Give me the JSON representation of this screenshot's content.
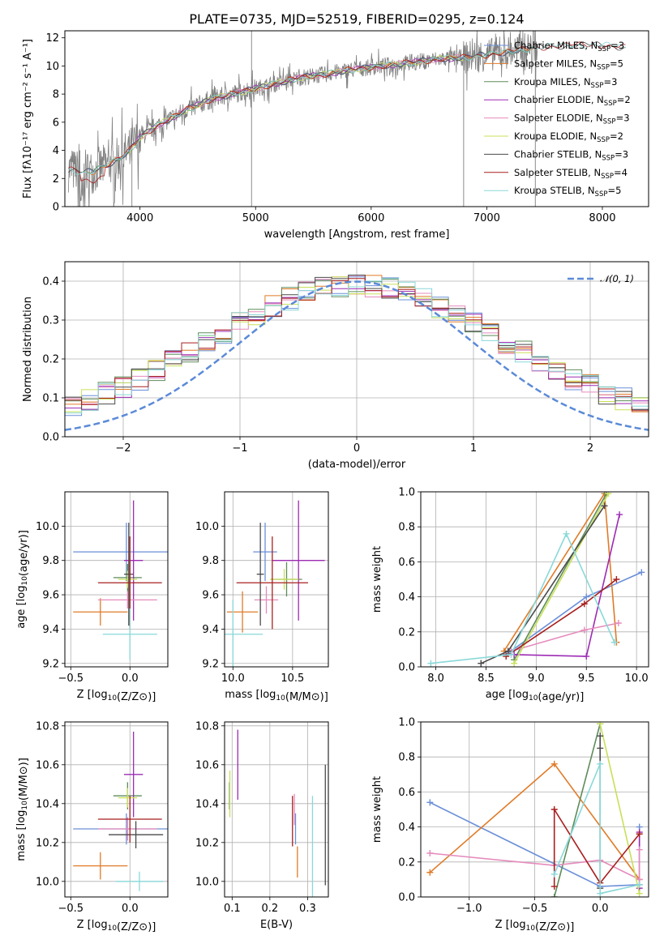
{
  "colors": {
    "Chabrier MILES": "#6a8fd8",
    "Salpeter MILES": "#e07b28",
    "Kroupa MILES": "#5e8c5a",
    "Chabrier ELODIE": "#9d2bb4",
    "Salpeter ELODIE": "#e58bbc",
    "Kroupa ELODIE": "#c8e05a",
    "Chabrier STELIB": "#4a4a4a",
    "Salpeter STELIB": "#a81f1f",
    "Kroupa STELIB": "#8ad8d8",
    "data": "#808080"
  },
  "chart_data": [
    {
      "id": "spectrum",
      "type": "line",
      "title": "PLATE=0735, MJD=52519, FIBERID=0295, z=0.124",
      "xlabel": "wavelength [Angstrom, rest frame]",
      "ylabel": "Flux [fλ10⁻¹⁷ erg cm⁻² s⁻¹ A⁻¹]",
      "xlim": [
        3350,
        8400
      ],
      "ylim": [
        0,
        12.5
      ],
      "xticks": [
        4000,
        5000,
        6000,
        7000,
        8000
      ],
      "yticks": [
        0,
        2,
        4,
        6,
        8,
        10,
        12
      ],
      "grid": false,
      "legend_position": "top-right",
      "series": [
        {
          "name": "Chabrier MILES, N",
          "sub": "SSP",
          "suffix": "=3"
        },
        {
          "name": "Salpeter MILES, N",
          "sub": "SSP",
          "suffix": "=5"
        },
        {
          "name": "Kroupa MILES, N",
          "sub": "SSP",
          "suffix": "=3"
        },
        {
          "name": "Chabrier ELODIE, N",
          "sub": "SSP",
          "suffix": "=2"
        },
        {
          "name": "Salpeter ELODIE, N",
          "sub": "SSP",
          "suffix": "=3"
        },
        {
          "name": "Kroupa ELODIE, N",
          "sub": "SSP",
          "suffix": "=2"
        },
        {
          "name": "Chabrier STELIB, N",
          "sub": "SSP",
          "suffix": "=3"
        },
        {
          "name": "Salpeter STELIB, N",
          "sub": "SSP",
          "suffix": "=4"
        },
        {
          "name": "Kroupa STELIB, N",
          "sub": "SSP",
          "suffix": "=5"
        }
      ],
      "continuum": {
        "x": [
          3400,
          3500,
          3600,
          3700,
          3800,
          3900,
          4000,
          4100,
          4200,
          4300,
          4400,
          4500,
          4600,
          4700,
          4800,
          4900,
          5000,
          5200,
          5400,
          5600,
          5800,
          6000,
          6200,
          6400,
          6600,
          6800,
          7000,
          7200,
          7400,
          7600,
          7800,
          8000,
          8200
        ],
        "y": [
          2.6,
          2.45,
          2.5,
          2.9,
          3.3,
          3.9,
          4.9,
          5.5,
          6.0,
          6.4,
          6.9,
          7.2,
          7.6,
          7.8,
          8.0,
          8.2,
          8.4,
          8.8,
          9.2,
          9.4,
          9.7,
          9.9,
          10.1,
          10.3,
          10.5,
          10.6,
          10.8,
          11.0,
          11.3,
          11.4,
          11.5,
          11.5,
          11.3
        ]
      }
    },
    {
      "id": "residuals",
      "type": "histogram",
      "xlabel": "(data-model)/error",
      "ylabel": "Normed distribution",
      "xlim": [
        -2.5,
        2.5
      ],
      "ylim": [
        0,
        0.45
      ],
      "xticks": [
        -2,
        -1,
        0,
        1,
        2
      ],
      "yticks": [
        0.0,
        0.1,
        0.2,
        0.3,
        0.4
      ],
      "grid": true,
      "legend_position": "top-right",
      "reference": {
        "name": "𝒩(0, 1)",
        "mean": 0,
        "sigma": 1
      }
    },
    {
      "id": "age-vs-Z",
      "type": "errorbar",
      "xlabel": "Z [log10(Z/Z⊙)]",
      "ylabel": "age  [log10(age/yr)]",
      "xlim": [
        -0.55,
        0.32
      ],
      "ylim": [
        9.18,
        10.2
      ],
      "xticks": [
        -0.5,
        0.0
      ],
      "yticks": [
        9.2,
        9.4,
        9.6,
        9.8,
        10.0
      ],
      "grid": true,
      "points": [
        {
          "model": "Chabrier MILES",
          "x": -0.03,
          "xerr": 0.45,
          "y": 9.85,
          "yerr": 0.17
        },
        {
          "model": "Salpeter MILES",
          "x": -0.25,
          "xerr": 0.23,
          "y": 9.5,
          "yerr": 0.08
        },
        {
          "model": "Kroupa MILES",
          "x": -0.02,
          "xerr": 0.12,
          "y": 9.7,
          "yerr": 0.08
        },
        {
          "model": "Chabrier ELODIE",
          "x": 0.03,
          "xerr": 0.08,
          "y": 9.8,
          "yerr": 0.35
        },
        {
          "model": "Salpeter ELODIE",
          "x": -0.02,
          "xerr": 0.25,
          "y": 9.57,
          "yerr": 0.05
        },
        {
          "model": "Kroupa ELODIE",
          "x": -0.02,
          "xerr": 0.08,
          "y": 9.69,
          "yerr": 0.05
        },
        {
          "model": "Chabrier STELIB",
          "x": -0.01,
          "xerr": 0.04,
          "y": 9.72,
          "yerr": 0.3
        },
        {
          "model": "Salpeter STELIB",
          "x": 0.0,
          "xerr": 0.27,
          "y": 9.67,
          "yerr": 0.27
        },
        {
          "model": "Kroupa STELIB",
          "x": 0.0,
          "xerr": 0.23,
          "y": 9.37,
          "yerr": 0.15
        }
      ]
    },
    {
      "id": "age-vs-mass",
      "type": "errorbar",
      "xlabel": "mass [log10(M/M⊙)]",
      "ylabel": "",
      "xlim": [
        9.93,
        10.8
      ],
      "ylim": [
        9.18,
        10.2
      ],
      "xticks": [
        10.0,
        10.5
      ],
      "yticks": [
        9.2,
        9.4,
        9.6,
        9.8,
        10.0
      ],
      "grid": true,
      "points": [
        {
          "model": "Chabrier MILES",
          "x": 10.27,
          "xerr": 0.1,
          "y": 9.85,
          "yerr": 0.17
        },
        {
          "model": "Salpeter MILES",
          "x": 10.08,
          "xerr": 0.13,
          "y": 9.5,
          "yerr": 0.12
        },
        {
          "model": "Kroupa MILES",
          "x": 10.45,
          "xerr": 0.13,
          "y": 9.69,
          "yerr": 0.1
        },
        {
          "model": "Chabrier ELODIE",
          "x": 10.55,
          "xerr": 0.22,
          "y": 9.8,
          "yerr": 0.35
        },
        {
          "model": "Salpeter ELODIE",
          "x": 10.28,
          "xerr": 0.1,
          "y": 9.57,
          "yerr": 0.08
        },
        {
          "model": "Kroupa ELODIE",
          "x": 10.43,
          "xerr": 0.12,
          "y": 9.69,
          "yerr": 0.06
        },
        {
          "model": "Chabrier STELIB",
          "x": 10.23,
          "xerr": 0.03,
          "y": 9.72,
          "yerr": 0.3
        },
        {
          "model": "Salpeter STELIB",
          "x": 10.33,
          "xerr": 0.3,
          "y": 9.67,
          "yerr": 0.27
        },
        {
          "model": "Kroupa STELIB",
          "x": 10.0,
          "xerr": 0.25,
          "y": 9.37,
          "yerr": 0.2
        }
      ]
    },
    {
      "id": "weight-vs-age",
      "type": "line",
      "xlabel": "age  [log10(age/yr)]",
      "ylabel": "mass weight",
      "xlim": [
        7.85,
        10.12
      ],
      "ylim": [
        0,
        1.0
      ],
      "xticks": [
        8.0,
        8.5,
        9.0,
        9.5,
        10.0
      ],
      "yticks": [
        0.0,
        0.2,
        0.4,
        0.6,
        0.8,
        1.0
      ],
      "grid": true,
      "series": [
        {
          "model": "Chabrier MILES",
          "x": [
            8.7,
            9.5,
            10.05
          ],
          "y": [
            0.07,
            0.4,
            0.54
          ]
        },
        {
          "model": "Salpeter MILES",
          "x": [
            8.68,
            9.68,
            9.8
          ],
          "y": [
            0.09,
            0.99,
            0.14
          ]
        },
        {
          "model": "Kroupa MILES",
          "x": [
            8.78,
            9.7
          ],
          "y": [
            0.04,
            0.99
          ]
        },
        {
          "model": "Chabrier ELODIE",
          "x": [
            8.78,
            9.5,
            9.83
          ],
          "y": [
            0.07,
            0.06,
            0.87
          ]
        },
        {
          "model": "Salpeter ELODIE",
          "x": [
            8.75,
            9.48,
            9.82
          ],
          "y": [
            0.09,
            0.21,
            0.25
          ]
        },
        {
          "model": "Kroupa ELODIE",
          "x": [
            8.78,
            9.72
          ],
          "y": [
            0.02,
            0.99
          ]
        },
        {
          "model": "Chabrier STELIB",
          "x": [
            8.45,
            8.72,
            9.68
          ],
          "y": [
            0.02,
            0.09,
            0.92
          ]
        },
        {
          "model": "Salpeter STELIB",
          "x": [
            8.7,
            9.48,
            9.8
          ],
          "y": [
            0.06,
            0.36,
            0.5
          ]
        },
        {
          "model": "Kroupa STELIB",
          "x": [
            7.95,
            8.75,
            9.3,
            9.78
          ],
          "y": [
            0.02,
            0.07,
            0.76,
            0.14
          ]
        }
      ]
    },
    {
      "id": "mass-vs-Z",
      "type": "errorbar",
      "xlabel": "Z [log10(Z/Z⊙)]",
      "ylabel": "mass [log10(M/M⊙)]",
      "xlim": [
        -0.55,
        0.32
      ],
      "ylim": [
        9.92,
        10.82
      ],
      "xticks": [
        -0.5,
        0.0
      ],
      "yticks": [
        10.0,
        10.2,
        10.4,
        10.6,
        10.8
      ],
      "grid": true,
      "points": [
        {
          "model": "Chabrier MILES",
          "x": -0.03,
          "xerr": 0.45,
          "y": 10.27,
          "yerr": 0.08
        },
        {
          "model": "Salpeter MILES",
          "x": -0.25,
          "xerr": 0.23,
          "y": 10.08,
          "yerr": 0.07
        },
        {
          "model": "Kroupa MILES",
          "x": -0.02,
          "xerr": 0.12,
          "y": 10.44,
          "yerr": 0.07
        },
        {
          "model": "Chabrier ELODIE",
          "x": 0.03,
          "xerr": 0.08,
          "y": 10.55,
          "yerr": 0.22
        },
        {
          "model": "Salpeter ELODIE",
          "x": -0.02,
          "xerr": 0.25,
          "y": 10.27,
          "yerr": 0.06
        },
        {
          "model": "Kroupa ELODIE",
          "x": -0.02,
          "xerr": 0.08,
          "y": 10.43,
          "yerr": 0.05
        },
        {
          "model": "Chabrier STELIB",
          "x": 0.05,
          "xerr": 0.23,
          "y": 10.24,
          "yerr": 0.07
        },
        {
          "model": "Salpeter STELIB",
          "x": 0.0,
          "xerr": 0.27,
          "y": 10.32,
          "yerr": 0.12
        },
        {
          "model": "Kroupa STELIB",
          "x": 0.08,
          "xerr": 0.2,
          "y": 10.0,
          "yerr": 0.05
        }
      ]
    },
    {
      "id": "mass-vs-EBV",
      "type": "errorbar",
      "xlabel": "E(B-V)",
      "ylabel": "",
      "xlim": [
        0.08,
        0.355
      ],
      "ylim": [
        9.92,
        10.82
      ],
      "xticks": [
        0.1,
        0.2,
        0.3
      ],
      "yticks": [
        10.0,
        10.2,
        10.4,
        10.6,
        10.8
      ],
      "grid": true,
      "points": [
        {
          "model": "Chabrier MILES",
          "x": 0.268,
          "xerr": 0,
          "y": 10.27,
          "yerr": 0.08
        },
        {
          "model": "Salpeter MILES",
          "x": 0.273,
          "xerr": 0,
          "y": 10.1,
          "yerr": 0.08
        },
        {
          "model": "Kroupa MILES",
          "x": 0.093,
          "xerr": 0,
          "y": 10.44,
          "yerr": 0.07
        },
        {
          "model": "Chabrier ELODIE",
          "x": 0.115,
          "xerr": 0,
          "y": 10.6,
          "yerr": 0.18
        },
        {
          "model": "Salpeter ELODIE",
          "x": 0.265,
          "xerr": 0,
          "y": 10.37,
          "yerr": 0.08
        },
        {
          "model": "Kroupa ELODIE",
          "x": 0.094,
          "xerr": 0,
          "y": 10.45,
          "yerr": 0.12
        },
        {
          "model": "Chabrier STELIB",
          "x": 0.347,
          "xerr": 0,
          "y": 10.29,
          "yerr": 0.31
        },
        {
          "model": "Salpeter STELIB",
          "x": 0.26,
          "xerr": 0,
          "y": 10.31,
          "yerr": 0.13
        },
        {
          "model": "Kroupa STELIB",
          "x": 0.313,
          "xerr": 0,
          "y": 10.12,
          "yerr": 0.32
        }
      ]
    },
    {
      "id": "weight-vs-Z",
      "type": "line",
      "xlabel": "Z [log10(Z/Z⊙)]",
      "ylabel": "mass weight",
      "xlim": [
        -1.37,
        0.37
      ],
      "ylim": [
        0,
        1.0
      ],
      "xticks": [
        -1.0,
        -0.5,
        0.0
      ],
      "yticks": [
        0.0,
        0.2,
        0.4,
        0.6,
        0.8,
        1.0
      ],
      "grid": true,
      "series": [
        {
          "model": "Chabrier MILES",
          "x": [
            -1.3,
            0.0,
            0.3,
            0.3
          ],
          "y": [
            0.54,
            0.06,
            0.07,
            0.4
          ]
        },
        {
          "model": "Salpeter MILES",
          "x": [
            -1.3,
            -0.35,
            0.3
          ],
          "y": [
            0.14,
            0.76,
            0.1
          ]
        },
        {
          "model": "Kroupa MILES",
          "x": [
            -0.35,
            0.0
          ],
          "y": [
            0.0,
            0.99
          ]
        },
        {
          "model": "Chabrier ELODIE",
          "x": [
            0.3,
            0.3
          ],
          "y": [
            0.05,
            0.37
          ]
        },
        {
          "model": "Salpeter ELODIE",
          "x": [
            -1.3,
            -0.35,
            0.0,
            0.3,
            0.3
          ],
          "y": [
            0.25,
            0.18,
            0.21,
            0.1,
            0.27
          ]
        },
        {
          "model": "Kroupa ELODIE",
          "x": [
            0.0,
            0.3
          ],
          "y": [
            0.99,
            0.02
          ]
        },
        {
          "model": "Chabrier STELIB",
          "x": [
            0.0,
            0.0,
            0.0
          ],
          "y": [
            0.05,
            0.92,
            0.85
          ]
        },
        {
          "model": "Salpeter STELIB",
          "x": [
            -0.35,
            -0.35,
            0.0,
            0.3
          ],
          "y": [
            0.06,
            0.5,
            0.08,
            0.36
          ]
        },
        {
          "model": "Kroupa STELIB",
          "x": [
            -0.35,
            0.0,
            0.0,
            0.3
          ],
          "y": [
            0.13,
            0.76,
            0.02,
            0.07
          ]
        }
      ]
    }
  ]
}
